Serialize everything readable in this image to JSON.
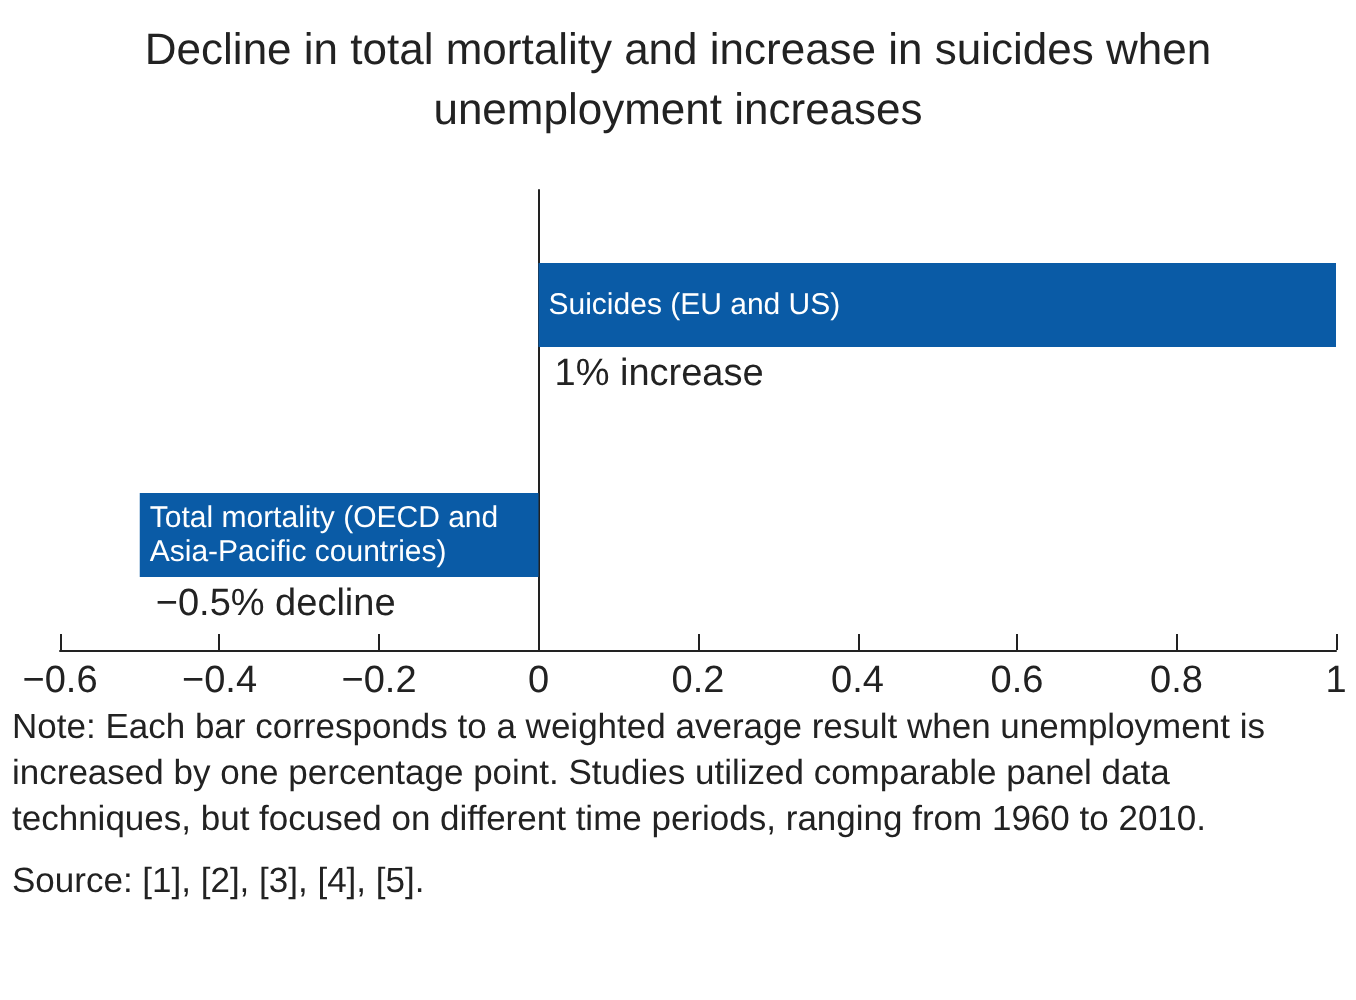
{
  "chart_data": {
    "type": "bar",
    "orientation": "horizontal",
    "title": "Decline in total mortality and increase in suicides when unemployment increases",
    "categories": [
      "Suicides (EU and US)",
      "Total mortality (OECD and Asia-Pacific countries)"
    ],
    "values": [
      1,
      -0.5
    ],
    "color": "#0a5ba6",
    "value_labels": [
      "1% increase",
      "−0.5% decline"
    ],
    "xlim": [
      -0.6,
      1
    ],
    "xticks": [
      {
        "value": -0.6,
        "label": "−0.6"
      },
      {
        "value": -0.4,
        "label": "−0.4"
      },
      {
        "value": -0.2,
        "label": "−0.2"
      },
      0,
      0.2,
      0.4,
      0.6,
      0.8,
      1
    ],
    "annotations": [
      "Note: Each bar corresponds to a weighted average result when unemployment is increased by one percentage point. Studies utilized comparable panel data techniques, but focused on different time periods, ranging from 1960 to 2010.",
      "Source: [1], [2], [3], [4], [5]."
    ]
  }
}
